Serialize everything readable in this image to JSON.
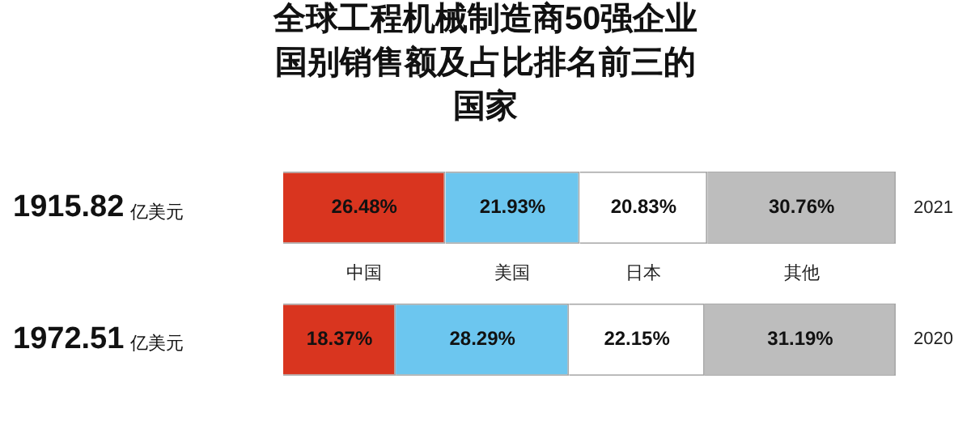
{
  "chart_data": {
    "type": "bar",
    "title": "全球工程机械制造商50强企业国别销售额及占比排名前三的国家",
    "orientation": "horizontal",
    "stacked": true,
    "categories": [
      "2021",
      "2020"
    ],
    "xlim": [
      0,
      100
    ],
    "annotations": [
      "1915.82 亿美元",
      "1972.51 亿美元"
    ],
    "series": [
      {
        "name": "中国",
        "color": "#d9351f",
        "values": [
          26.48,
          18.37
        ],
        "value_labels": [
          "26.48%",
          "18.37%"
        ]
      },
      {
        "name": "美国",
        "color": "#6cc6ef",
        "values": [
          21.93,
          28.29
        ],
        "value_labels": [
          "21.93%",
          "28.29%"
        ]
      },
      {
        "name": "日本",
        "color": "#ffffff",
        "values": [
          20.83,
          22.15
        ],
        "value_labels": [
          "20.83%",
          "22.15%"
        ]
      },
      {
        "name": "其他",
        "color": "#bdbdbd",
        "values": [
          30.76,
          31.19
        ],
        "value_labels": [
          "30.76%",
          "31.19%"
        ]
      }
    ]
  }
}
